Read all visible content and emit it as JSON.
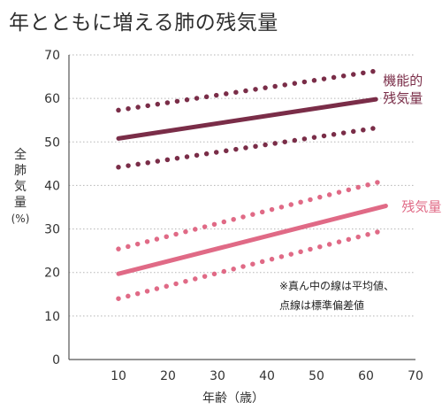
{
  "chart_data": {
    "type": "line",
    "title": "年とともに増える肺の残気量",
    "ylabel_chars": [
      "全",
      "肺",
      "気",
      "量"
    ],
    "ylabel_unit": "(%)",
    "xlabel": "年齢（歳）",
    "xlim": [
      0,
      70
    ],
    "ylim": [
      0,
      70
    ],
    "xticks": [
      10,
      20,
      30,
      40,
      50,
      60,
      70
    ],
    "yticks": [
      0,
      10,
      20,
      30,
      40,
      50,
      60,
      70
    ],
    "grid": "horizontal dotted",
    "series": [
      {
        "name": "機能的残気量",
        "label_lines": [
          "機能的",
          "残気量"
        ],
        "color": "#7a2d48",
        "mean": {
          "x": [
            10,
            62
          ],
          "y": [
            50.8,
            59.8
          ]
        },
        "upper": {
          "x": [
            10,
            62
          ],
          "y": [
            57.3,
            66.3
          ]
        },
        "lower": {
          "x": [
            10,
            62
          ],
          "y": [
            44.2,
            53.2
          ]
        }
      },
      {
        "name": "残気量",
        "label_lines": [
          "残気量"
        ],
        "color": "#e06a86",
        "mean": {
          "x": [
            10,
            64
          ],
          "y": [
            19.7,
            35.3
          ]
        },
        "upper": {
          "x": [
            10,
            64
          ],
          "y": [
            25.4,
            41.2
          ]
        },
        "lower": {
          "x": [
            10,
            64
          ],
          "y": [
            14.0,
            29.8
          ]
        }
      }
    ],
    "note_lines": [
      "※真ん中の線は平均値、",
      "点線は標準偏差値"
    ]
  }
}
